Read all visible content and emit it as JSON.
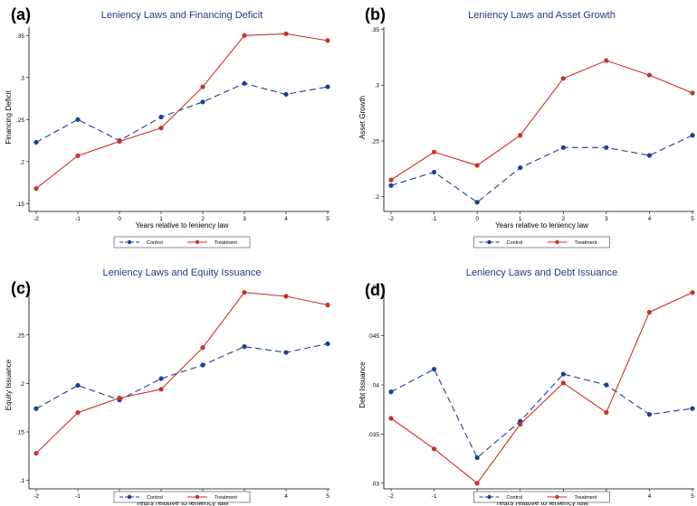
{
  "colors": {
    "control": "#1f3d99",
    "treatment": "#c8322a",
    "title": "#1e3a8a"
  },
  "chart_data": [
    {
      "type": "line",
      "label": "(a)",
      "title": "Leniency Laws and Financing Deficit",
      "xlabel": "Years relative to leniency law",
      "ylabel": "Financing Deficit",
      "x": [
        -2,
        -1,
        0,
        1,
        2,
        3,
        4,
        5
      ],
      "xticks": [
        "-2",
        "-1",
        "0",
        "1",
        "2",
        "3",
        "4",
        "5"
      ],
      "ylim": [
        0.145,
        0.36
      ],
      "yticks": [
        0.15,
        0.2,
        0.25,
        0.3,
        0.35
      ],
      "ytick_labels": [
        ".15",
        ".2",
        ".25",
        ".3",
        ".35"
      ],
      "series": [
        {
          "name": "Control",
          "style": "dashed",
          "marker": "circle",
          "values": [
            0.223,
            0.25,
            0.225,
            0.253,
            0.271,
            0.293,
            0.28,
            0.289
          ]
        },
        {
          "name": "Treatment",
          "style": "solid",
          "marker": "circle",
          "values": [
            0.168,
            0.207,
            0.224,
            0.24,
            0.289,
            0.35,
            0.352,
            0.344
          ]
        }
      ]
    },
    {
      "type": "line",
      "label": "(b)",
      "title": "Leniency Laws and Asset Growth",
      "xlabel": "Years relative to leniency law",
      "ylabel": "Asset Growth",
      "x": [
        -2,
        -1,
        0,
        1,
        2,
        3,
        4,
        5
      ],
      "xticks": [
        "-2",
        "-1",
        "0",
        "1",
        "2",
        "3",
        "4",
        "5"
      ],
      "ylim": [
        0.19,
        0.352
      ],
      "yticks": [
        0.2,
        0.25,
        0.3,
        0.35
      ],
      "ytick_labels": [
        ".2",
        ".25",
        ".3",
        ".35"
      ],
      "series": [
        {
          "name": "Control",
          "style": "dashed",
          "marker": "circle",
          "values": [
            0.21,
            0.222,
            0.195,
            0.226,
            0.244,
            0.244,
            0.237,
            0.255
          ]
        },
        {
          "name": "Treatment",
          "style": "solid",
          "marker": "circle",
          "values": [
            0.215,
            0.24,
            0.228,
            0.255,
            0.306,
            0.322,
            0.309,
            0.293
          ]
        }
      ]
    },
    {
      "type": "line",
      "label": "(c)",
      "title": "Leniency Laws and Equity Issuance",
      "xlabel": "Years relative to leniency law",
      "ylabel": "Equity Issuance",
      "x": [
        -2,
        -1,
        0,
        1,
        2,
        3,
        4,
        5
      ],
      "xticks": [
        "-2",
        "-1",
        "0",
        "1",
        "2",
        "3",
        "4",
        "5"
      ],
      "ylim": [
        0.095,
        0.302
      ],
      "yticks": [
        0.1,
        0.15,
        0.2,
        0.25,
        0.3
      ],
      "ytick_labels": [
        ".1",
        ".15",
        ".2",
        ".25",
        ".3"
      ],
      "series": [
        {
          "name": "Control",
          "style": "dashed",
          "marker": "circle",
          "values": [
            0.174,
            0.198,
            0.183,
            0.205,
            0.219,
            0.238,
            0.232,
            0.241
          ]
        },
        {
          "name": "Treatment",
          "style": "solid",
          "marker": "circle",
          "values": [
            0.128,
            0.17,
            0.185,
            0.194,
            0.237,
            0.294,
            0.29,
            0.281
          ]
        }
      ]
    },
    {
      "type": "line",
      "label": "(d)",
      "title": "Leniency Laws and Debt Issuance",
      "xlabel": "Years relative to leniency law",
      "ylabel": "Debt Issuance",
      "x": [
        -2,
        -1,
        0,
        1,
        2,
        3,
        4,
        5
      ],
      "xticks": [
        "-2",
        "-1",
        "0",
        "1",
        "2",
        "3",
        "4",
        "5"
      ],
      "ylim": [
        0.0298,
        0.0502
      ],
      "yticks": [
        0.03,
        0.035,
        0.04,
        0.045,
        0.05
      ],
      "ytick_labels": [
        ".03",
        ".035",
        ".04",
        ".045",
        ".05"
      ],
      "series": [
        {
          "name": "Control",
          "style": "dashed",
          "marker": "circle",
          "values": [
            0.0393,
            0.0416,
            0.0326,
            0.0363,
            0.0411,
            0.04,
            0.037,
            0.0376
          ]
        },
        {
          "name": "Treatment",
          "style": "solid",
          "marker": "circle",
          "values": [
            0.0366,
            0.0335,
            0.03,
            0.036,
            0.0402,
            0.0372,
            0.0474,
            0.0494
          ]
        }
      ]
    }
  ]
}
